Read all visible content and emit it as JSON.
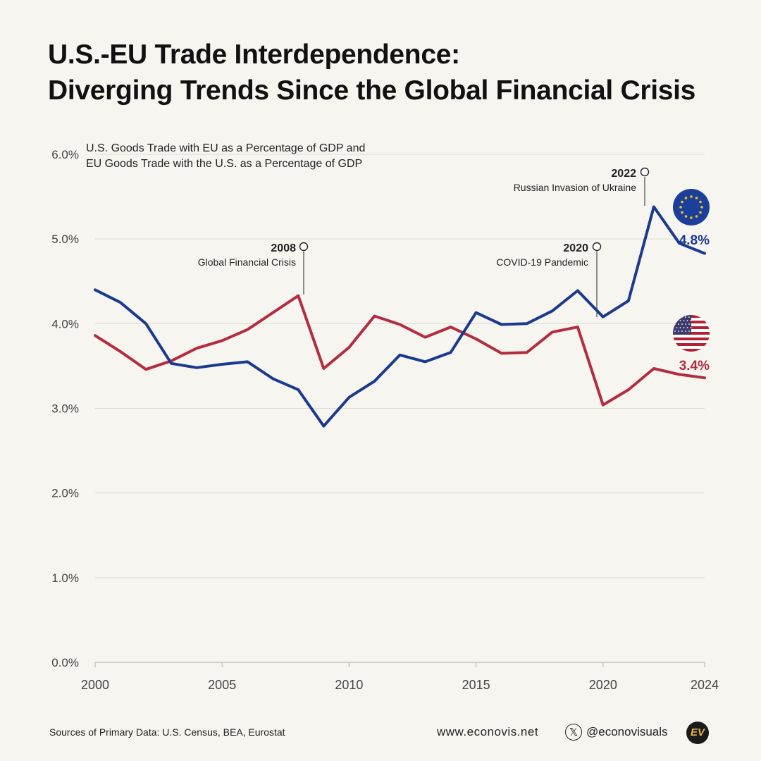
{
  "title": {
    "line1": "U.S.-EU Trade Interdependence:",
    "line2": "Diverging Trends Since the Global Financial Crisis"
  },
  "chart_data": {
    "type": "line",
    "subtitle_line1": "U.S. Goods Trade with EU as a Percentage of GDP and",
    "subtitle_line2": "EU Goods Trade with the U.S. as a Percentage of GDP",
    "x": [
      2000,
      2001,
      2002,
      2003,
      2004,
      2005,
      2006,
      2007,
      2008,
      2009,
      2010,
      2011,
      2012,
      2013,
      2014,
      2015,
      2016,
      2017,
      2018,
      2019,
      2020,
      2021,
      2022,
      2023,
      2024
    ],
    "xlim": [
      2000,
      2024
    ],
    "x_ticks": [
      "2000",
      "2005",
      "2010",
      "2015",
      "2020",
      "2024"
    ],
    "ylim": [
      0,
      6
    ],
    "y_ticks": [
      "0.0%",
      "1.0%",
      "2.0%",
      "3.0%",
      "4.0%",
      "5.0%",
      "6.0%"
    ],
    "grid": true,
    "series": [
      {
        "key": "eu",
        "color": "#1b3a8f",
        "values": [
          4.4,
          4.25,
          4.0,
          3.53,
          3.48,
          3.52,
          3.55,
          3.35,
          3.22,
          2.79,
          3.13,
          3.32,
          3.63,
          3.55,
          3.66,
          4.13,
          3.99,
          4.0,
          4.15,
          4.39,
          4.08,
          4.27,
          5.38,
          4.95,
          4.83
        ],
        "end_label": "4.8%"
      },
      {
        "key": "us",
        "color": "#b32c40",
        "values": [
          3.86,
          3.67,
          3.46,
          3.56,
          3.71,
          3.8,
          3.93,
          4.13,
          4.33,
          3.47,
          3.72,
          4.09,
          3.99,
          3.84,
          3.96,
          3.82,
          3.65,
          3.66,
          3.9,
          3.96,
          3.04,
          3.22,
          3.47,
          3.4,
          3.36
        ],
        "end_label": "3.4%"
      }
    ],
    "annotations": [
      {
        "year": "2008",
        "text": "Global Financial Crisis"
      },
      {
        "year": "2020",
        "text": "COVID-19 Pandemic"
      },
      {
        "year": "2022",
        "text": "Russian Invasion of Ukraine"
      }
    ]
  },
  "footer": {
    "sources": "Sources of Primary Data: U.S. Census, BEA, Eurostat",
    "website": "www.econovis.net",
    "x_glyph": "𝕏",
    "handle": "@econovisuals",
    "logo": "EV"
  },
  "icons": {
    "eu_flag": "eu-flag-icon",
    "us_flag": "us-flag-icon",
    "x_logo": "x-logo-icon"
  }
}
